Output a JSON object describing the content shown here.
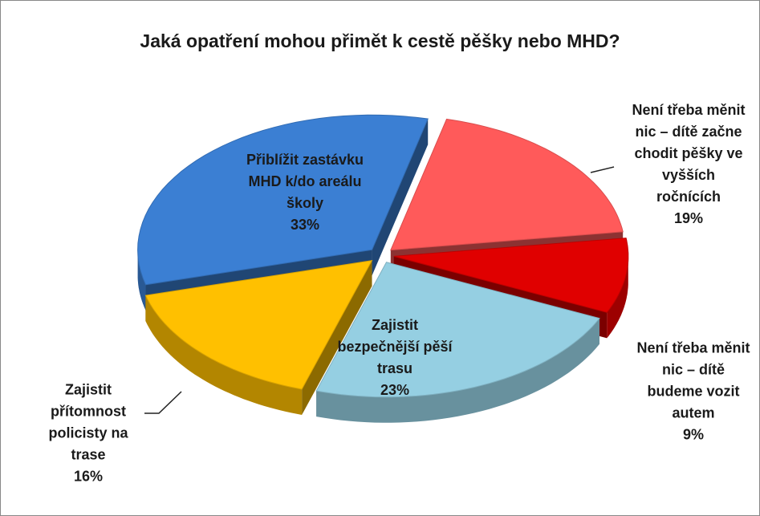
{
  "chart_data": {
    "type": "pie",
    "title": "Jaká opatření mohou přimět k cestě pěšky nebo MHD?",
    "categories": [
      "Přiblížit zastávku MHD k/do areálu školy",
      "Není třeba měnit nic – dítě začne chodit pěšky ve vyšších ročnících",
      "Není třeba měnit nic – dítě budeme vozit autem",
      "Zajistit bezpečnější pěší trasu",
      "Zajistit přítomnost policisty na trase"
    ],
    "values": [
      33,
      19,
      9,
      23,
      16
    ],
    "value_labels": [
      "33%",
      "19%",
      "9%",
      "23%",
      "16%"
    ],
    "colors": [
      "#3b7fd3",
      "#ff5a5a",
      "#e00000",
      "#95cfe2",
      "#ffc000"
    ]
  }
}
